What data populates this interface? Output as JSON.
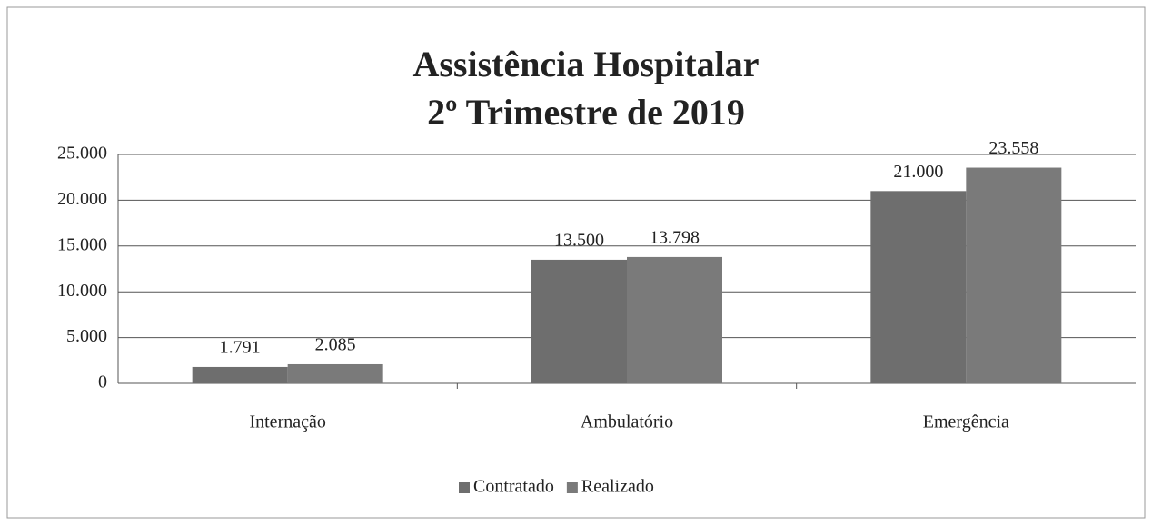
{
  "chart_data": {
    "type": "bar",
    "title": [
      "Assistência Hospitalar",
      "2º Trimestre de 2019"
    ],
    "categories": [
      "Internação",
      "Ambulatório",
      "Emergência"
    ],
    "series": [
      {
        "name": "Contratado",
        "color": "#6e6e6e",
        "values": [
          1791,
          13500,
          21000
        ],
        "value_labels": [
          "1.791",
          "13.500",
          "21.000"
        ]
      },
      {
        "name": "Realizado",
        "color": "#7a7a7a",
        "values": [
          2085,
          13798,
          23558
        ],
        "value_labels": [
          "2.085",
          "13.798",
          "23.558"
        ]
      }
    ],
    "ylim": [
      0,
      25000
    ],
    "yticks": [
      0,
      {
        "value": 5000,
        "label": "5.000"
      },
      {
        "value": 10000,
        "label": "10.000"
      },
      {
        "value": 15000,
        "label": "15.000"
      },
      {
        "value": 20000,
        "label": "20.000"
      },
      {
        "value": 25000,
        "label": "25.000"
      }
    ],
    "grid": true,
    "legend": "bottom"
  }
}
